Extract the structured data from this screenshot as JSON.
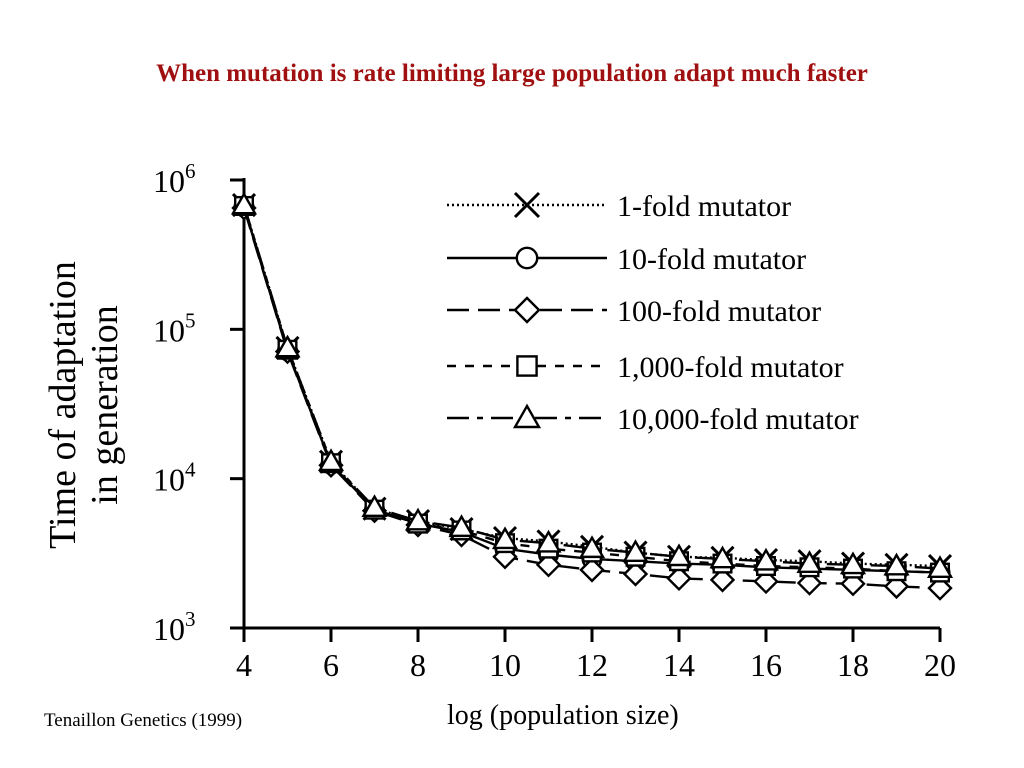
{
  "slide": {
    "title": "When mutation is rate limiting large population adapt much faster",
    "citation": "Tenaillon Genetics (1999)",
    "x_caption": "log (population size)"
  },
  "colors": {
    "title": "#a01010",
    "ink": "#000000"
  },
  "chart_data": {
    "type": "line",
    "title": "",
    "xlabel": "log (population size)",
    "ylabel": "Time of adaptation in generation",
    "x": [
      4,
      5,
      6,
      7,
      8,
      9,
      10,
      11,
      12,
      13,
      14,
      15,
      16,
      17,
      18,
      19,
      20
    ],
    "xlim": [
      4,
      20
    ],
    "x_ticks": [
      "4",
      "6",
      "8",
      "10",
      "12",
      "14",
      "16",
      "18",
      "20"
    ],
    "y_scale": "log",
    "ylim": [
      1000,
      1000000
    ],
    "y_ticks": [
      {
        "value": 1000,
        "base": "10",
        "exp": "3"
      },
      {
        "value": 10000,
        "base": "10",
        "exp": "4"
      },
      {
        "value": 100000,
        "base": "10",
        "exp": "5"
      },
      {
        "value": 1000000,
        "base": "10",
        "exp": "6"
      }
    ],
    "legend_position": "top-right",
    "grid": false,
    "series": [
      {
        "name": "1-fold mutator",
        "marker": "x",
        "dash": "dotted",
        "values": [
          680000,
          75000,
          13000,
          6300,
          5200,
          4600,
          4000,
          3800,
          3500,
          3200,
          3000,
          2950,
          2850,
          2800,
          2700,
          2650,
          2600
        ]
      },
      {
        "name": "10-fold mutator",
        "marker": "circle",
        "dash": "solid",
        "values": [
          660000,
          72000,
          12500,
          6200,
          5000,
          4400,
          3400,
          3100,
          2900,
          2800,
          2700,
          2650,
          2550,
          2500,
          2450,
          2400,
          2350
        ]
      },
      {
        "name": "100-fold mutator",
        "marker": "diamond",
        "dash": "long-dash",
        "values": [
          650000,
          71000,
          12300,
          6100,
          4900,
          4200,
          3000,
          2650,
          2450,
          2300,
          2150,
          2100,
          2050,
          2000,
          1980,
          1900,
          1850
        ]
      },
      {
        "name": "1,000-fold mutator",
        "marker": "square",
        "dash": "short-dash",
        "values": [
          670000,
          73000,
          12700,
          6200,
          5000,
          4500,
          3700,
          3400,
          3200,
          3000,
          2800,
          2700,
          2600,
          2550,
          2500,
          2400,
          2350
        ]
      },
      {
        "name": "10,000-fold mutator",
        "marker": "triangle",
        "dash": "dash-dot",
        "values": [
          680000,
          75000,
          13000,
          6400,
          5200,
          4700,
          3900,
          3700,
          3400,
          3200,
          3000,
          2900,
          2800,
          2700,
          2650,
          2600,
          2500
        ]
      }
    ]
  }
}
